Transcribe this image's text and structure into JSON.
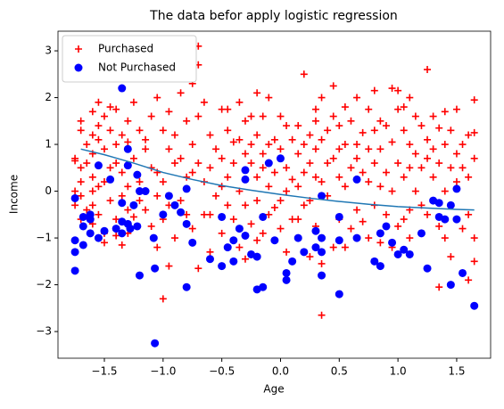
{
  "chart_data": {
    "type": "scatter",
    "title": "The data befor apply logistic regression",
    "xlabel": "Age",
    "ylabel": "Income",
    "legend": "upper left",
    "xlim": [
      -1.895,
      1.789
    ],
    "ylim": [
      -3.57,
      3.42
    ],
    "xticks": [
      {
        "value": -1.5,
        "label": "−1.5"
      },
      {
        "value": -1.0,
        "label": "−1.0"
      },
      {
        "value": -0.5,
        "label": "−0.5"
      },
      {
        "value": 0.0,
        "label": "0.0"
      },
      0.5,
      {
        "value": 1.0,
        "label": "1.0"
      },
      1.5
    ],
    "yticks": [
      {
        "value": -3,
        "label": "−3"
      },
      {
        "value": -2,
        "label": "−2"
      },
      {
        "value": -1,
        "label": "−1"
      },
      0,
      1,
      2,
      3
    ],
    "series": [
      {
        "name": "Purchased",
        "color": "#ff0000",
        "marker": "plus",
        "x": [
          -1.75,
          -1.75,
          -1.75,
          -1.75,
          -1.7,
          -1.7,
          -1.7,
          -1.7,
          -1.7,
          -1.7,
          -1.65,
          -1.65,
          -1.65,
          -1.6,
          -1.6,
          -1.6,
          -1.6,
          -1.6,
          -1.6,
          -1.6,
          -1.55,
          -1.55,
          -1.55,
          -1.55,
          -1.55,
          -1.5,
          -1.5,
          -1.5,
          -1.5,
          -1.5,
          -1.45,
          -1.45,
          -1.45,
          -1.45,
          -1.4,
          -1.4,
          -1.4,
          -1.4,
          -1.4,
          -1.35,
          -1.35,
          -1.35,
          -1.35,
          -1.3,
          -1.3,
          -1.3,
          -1.3,
          -1.3,
          -1.25,
          -1.25,
          -1.25,
          -1.2,
          -1.2,
          -1.2,
          -1.15,
          -1.15,
          -1.15,
          -1.1,
          -1.1,
          -1.1,
          -1.05,
          -1.05,
          -1.05,
          -1.05,
          -1.0,
          -1.0,
          -1.0,
          -1.0,
          -0.95,
          -0.95,
          -0.95,
          -0.95,
          -0.9,
          -0.9,
          -0.9,
          -0.85,
          -0.85,
          -0.85,
          -0.85,
          -0.8,
          -0.8,
          -0.8,
          -0.75,
          -0.75,
          -0.75,
          -0.75,
          -0.7,
          -0.7,
          -0.7,
          -0.7,
          -0.7,
          -0.65,
          -0.65,
          -0.65,
          -0.6,
          -0.6,
          -0.6,
          -0.6,
          -0.55,
          -0.55,
          -0.5,
          -0.5,
          -0.5,
          -0.5,
          -0.45,
          -0.45,
          -0.45,
          -0.45,
          -0.4,
          -0.4,
          -0.4,
          -0.35,
          -0.35,
          -0.35,
          -0.35,
          -0.3,
          -0.3,
          -0.3,
          -0.3,
          -0.25,
          -0.25,
          -0.25,
          -0.25,
          -0.2,
          -0.2,
          -0.2,
          -0.2,
          -0.2,
          -0.15,
          -0.15,
          -0.15,
          -0.15,
          -0.1,
          -0.1,
          -0.1,
          -0.1,
          -0.05,
          -0.05,
          -0.05,
          0.0,
          0.0,
          0.0,
          0.0,
          0.05,
          0.05,
          0.05,
          0.05,
          0.1,
          0.1,
          0.1,
          0.15,
          0.15,
          0.15,
          0.15,
          0.15,
          0.2,
          0.2,
          0.2,
          0.2,
          0.25,
          0.25,
          0.25,
          0.25,
          0.3,
          0.3,
          0.3,
          0.3,
          0.3,
          0.35,
          0.35,
          0.35,
          0.35,
          0.35,
          0.4,
          0.4,
          0.4,
          0.45,
          0.45,
          0.45,
          0.45,
          0.5,
          0.5,
          0.5,
          0.5,
          0.55,
          0.55,
          0.55,
          0.55,
          0.6,
          0.6,
          0.6,
          0.65,
          0.65,
          0.65,
          0.65,
          0.7,
          0.7,
          0.7,
          0.75,
          0.75,
          0.75,
          0.75,
          0.8,
          0.8,
          0.8,
          0.8,
          0.85,
          0.85,
          0.85,
          0.85,
          0.9,
          0.9,
          0.9,
          0.95,
          0.95,
          0.95,
          0.95,
          1.0,
          1.0,
          1.0,
          1.0,
          1.05,
          1.05,
          1.05,
          1.05,
          1.1,
          1.1,
          1.1,
          1.1,
          1.1,
          1.15,
          1.15,
          1.15,
          1.2,
          1.2,
          1.2,
          1.25,
          1.25,
          1.25,
          1.25,
          1.3,
          1.3,
          1.3,
          1.35,
          1.35,
          1.35,
          1.35,
          1.4,
          1.4,
          1.4,
          1.4,
          1.45,
          1.45,
          1.45,
          1.5,
          1.5,
          1.5,
          1.55,
          1.55,
          1.55,
          1.6,
          1.6,
          1.6,
          1.6,
          1.65,
          1.65,
          1.65,
          1.65,
          1.65
        ],
        "values": [
          0.7,
          0.65,
          0.0,
          -0.3,
          1.5,
          1.3,
          0.5,
          0.2,
          -0.1,
          -0.6,
          1.0,
          0.6,
          -0.4,
          1.7,
          1.2,
          0.8,
          0.3,
          0.0,
          -0.3,
          -0.7,
          1.9,
          1.4,
          1.1,
          0.1,
          -0.5,
          1.6,
          0.9,
          0.2,
          -0.9,
          -1.1,
          1.8,
          1.3,
          0.5,
          -0.2,
          1.75,
          1.0,
          0.6,
          -0.6,
          -0.95,
          1.2,
          0.4,
          -0.1,
          -1.15,
          1.5,
          1.05,
          0.1,
          -0.4,
          -0.9,
          1.9,
          0.7,
          -0.55,
          1.3,
          0.2,
          -0.2,
          1.1,
          0.9,
          -0.4,
          1.6,
          0.5,
          -0.75,
          2.0,
          0.4,
          -0.1,
          -1.2,
          1.3,
          0.2,
          -2.3,
          -0.6,
          1.7,
          0.9,
          -0.3,
          -1.6,
          1.2,
          0.6,
          -1.0,
          2.4,
          2.1,
          0.7,
          -0.2,
          1.5,
          0.3,
          -0.5,
          2.3,
          1.0,
          0.4,
          -0.8,
          3.1,
          2.7,
          1.6,
          0.6,
          -1.65,
          1.9,
          0.2,
          -0.5,
          1.2,
          0.5,
          -0.5,
          -1.3,
          0.9,
          -0.1,
          1.75,
          0.7,
          0.1,
          -0.9,
          1.75,
          1.3,
          0.3,
          -0.3,
          1.05,
          0.6,
          -0.6,
          1.9,
          1.1,
          0.0,
          -1.2,
          1.5,
          0.8,
          -0.3,
          -1.45,
          1.6,
          1.0,
          0.6,
          -0.7,
          2.1,
          1.2,
          0.3,
          -0.2,
          -1.05,
          1.6,
          0.8,
          0.5,
          -0.9,
          2.0,
          1.0,
          0.1,
          -0.5,
          1.1,
          0.4,
          -0.35,
          1.6,
          0.9,
          -0.2,
          -0.8,
          1.4,
          0.5,
          0.0,
          -1.3,
          1.1,
          0.25,
          -0.6,
          1.4,
          0.8,
          0.1,
          -0.6,
          -1.0,
          2.5,
          1.0,
          0.4,
          -0.3,
          1.2,
          0.6,
          -0.2,
          -1.4,
          1.75,
          1.5,
          0.9,
          0.3,
          -0.75,
          2.0,
          1.1,
          0.2,
          -1.55,
          -2.65,
          1.3,
          0.6,
          -0.1,
          2.25,
          1.6,
          0.7,
          -1.2,
          1.4,
          0.9,
          0.3,
          -0.6,
          1.8,
          1.0,
          0.1,
          -1.2,
          1.5,
          0.5,
          -0.8,
          2.0,
          1.0,
          0.7,
          -0.4,
          1.25,
          0.4,
          -0.65,
          1.75,
          0.9,
          0.2,
          -1.0,
          2.15,
          1.3,
          0.6,
          -0.3,
          1.5,
          0.9,
          0.1,
          -1.1,
          1.4,
          0.4,
          -0.5,
          2.2,
          1.05,
          0.0,
          -1.2,
          2.15,
          1.75,
          0.6,
          -0.75,
          1.8,
          1.3,
          0.3,
          -0.6,
          2.0,
          1.0,
          0.5,
          -0.4,
          -1.0,
          1.6,
          0.8,
          0.0,
          1.4,
          0.5,
          -0.3,
          2.6,
          1.1,
          0.7,
          -0.5,
          1.6,
          0.9,
          0.3,
          1.35,
          0.6,
          -0.75,
          -2.05,
          1.7,
          1.0,
          0.0,
          -1.0,
          1.3,
          0.5,
          -1.4,
          1.75,
          0.8,
          0.2,
          1.0,
          0.5,
          -0.8,
          1.2,
          0.3,
          -0.5,
          -1.9,
          1.95,
          1.25,
          0.7,
          -1.0,
          -1.5
        ]
      },
      {
        "name": "Not Purchased",
        "color": "#0000ff",
        "marker": "circle",
        "x": [
          -1.35,
          -1.75,
          -1.75,
          -1.75,
          -1.75,
          -1.68,
          -1.68,
          -1.68,
          -1.62,
          -1.62,
          -1.62,
          -1.55,
          -1.55,
          -1.5,
          -1.45,
          -1.4,
          -1.35,
          -1.35,
          -1.35,
          -1.3,
          -1.3,
          -1.3,
          -1.28,
          -1.25,
          -1.22,
          -1.22,
          -1.2,
          -1.2,
          -1.15,
          -1.08,
          -1.07,
          -1.07,
          -1.0,
          -0.95,
          -0.9,
          -0.85,
          -0.8,
          -0.8,
          -0.8,
          -0.75,
          -0.6,
          -0.5,
          -0.5,
          -0.45,
          -0.4,
          -0.4,
          -0.35,
          -0.3,
          -0.25,
          -0.2,
          -0.2,
          -0.15,
          -0.15,
          -0.3,
          -0.3,
          -0.1,
          -0.05,
          0.0,
          0.05,
          0.05,
          0.1,
          0.15,
          0.2,
          0.3,
          0.3,
          0.35,
          0.35,
          0.35,
          0.35,
          0.5,
          0.5,
          0.5,
          0.65,
          0.65,
          0.8,
          0.85,
          0.85,
          0.9,
          0.95,
          1.0,
          1.05,
          1.1,
          1.2,
          1.25,
          1.3,
          1.35,
          1.4,
          1.45,
          1.5,
          1.5,
          1.55,
          1.65,
          1.35,
          1.45
        ],
        "values": [
          2.2,
          -0.15,
          -1.05,
          -1.3,
          -1.7,
          -0.55,
          -0.75,
          -1.15,
          -0.5,
          -0.6,
          -0.9,
          0.55,
          -1.0,
          -0.85,
          0.25,
          -0.8,
          -0.25,
          -0.65,
          -0.9,
          0.9,
          0.55,
          -0.7,
          -0.8,
          -0.3,
          0.35,
          -0.75,
          -1.8,
          0.0,
          0.0,
          -1.0,
          -1.65,
          -3.25,
          -0.5,
          -0.1,
          -0.3,
          -0.45,
          0.05,
          -0.7,
          -2.05,
          -1.1,
          -1.45,
          -1.6,
          -0.55,
          -1.2,
          -1.05,
          -1.5,
          -0.8,
          -0.95,
          -1.35,
          -1.4,
          -2.1,
          -2.05,
          -0.55,
          0.45,
          0.25,
          0.6,
          -1.05,
          0.7,
          -1.75,
          -1.9,
          -1.5,
          -1.0,
          -1.3,
          -1.2,
          -0.85,
          -0.1,
          -1.0,
          -1.3,
          -1.8,
          -0.55,
          -1.05,
          -2.2,
          0.25,
          -1.0,
          -1.5,
          -0.9,
          -1.6,
          -0.75,
          -1.1,
          -1.35,
          -1.25,
          -1.35,
          -0.9,
          -1.65,
          -0.2,
          -0.55,
          -0.6,
          -2.0,
          0.05,
          -0.6,
          -1.75,
          -2.45,
          -0.25,
          -0.3
        ]
      },
      {
        "color": "#1f77b4",
        "marker": "line",
        "x": [
          -1.7,
          -1.5,
          -1.25,
          -1.0,
          -0.75,
          -0.5,
          -0.25,
          0.0,
          0.25,
          0.5,
          0.75,
          1.0,
          1.25,
          1.5,
          1.65
        ],
        "values": [
          0.9,
          0.78,
          0.6,
          0.4,
          0.25,
          0.12,
          0.02,
          -0.07,
          -0.15,
          -0.22,
          -0.28,
          -0.33,
          -0.36,
          -0.39,
          -0.4
        ]
      }
    ]
  }
}
